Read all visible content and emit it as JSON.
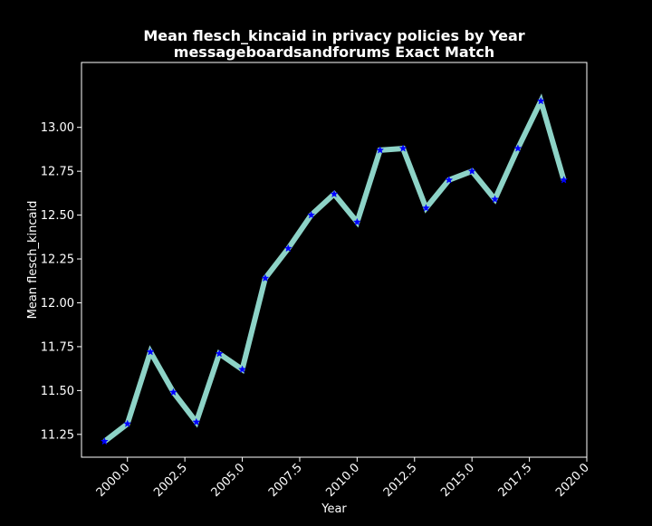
{
  "chart_data": {
    "type": "line",
    "title_line1": "Mean flesch_kincaid in privacy policies by Year",
    "title_line2": "messageboardsandforums Exact Match",
    "xlabel": "Year",
    "ylabel": "Mean flesch_kincaid",
    "xlim": [
      1998.0,
      2020.0
    ],
    "ylim": [
      11.12,
      13.37
    ],
    "x_ticks": [
      2000.0,
      2002.5,
      2005.0,
      2007.5,
      2010.0,
      2012.5,
      2015.0,
      2017.5,
      2020.0
    ],
    "x_tick_labels": [
      "2000.0",
      "2002.5",
      "2005.0",
      "2007.5",
      "2010.0",
      "2012.5",
      "2015.0",
      "2017.5",
      "2020.0"
    ],
    "y_ticks": [
      11.25,
      11.5,
      11.75,
      12.0,
      12.25,
      12.5,
      12.75,
      13.0
    ],
    "y_tick_labels": [
      "11.25",
      "11.50",
      "11.75",
      "12.00",
      "12.25",
      "12.50",
      "12.75",
      "13.00"
    ],
    "grid": false,
    "series": [
      {
        "x": [
          1999,
          2000,
          2001,
          2002,
          2003,
          2004,
          2005,
          2006,
          2007,
          2008,
          2009,
          2010,
          2011,
          2012,
          2013,
          2014,
          2015,
          2016,
          2017,
          2018,
          2019
        ],
        "values": [
          11.21,
          11.31,
          11.72,
          11.49,
          11.32,
          11.71,
          11.62,
          12.14,
          12.31,
          12.5,
          12.62,
          12.46,
          12.87,
          12.88,
          12.54,
          12.7,
          12.75,
          12.59,
          12.88,
          13.15,
          12.7
        ]
      }
    ],
    "colors": {
      "background": "#000000",
      "line": "#8dd3c7",
      "marker": "#0000ff",
      "text": "#ffffff",
      "axes": "#ffffff"
    }
  }
}
